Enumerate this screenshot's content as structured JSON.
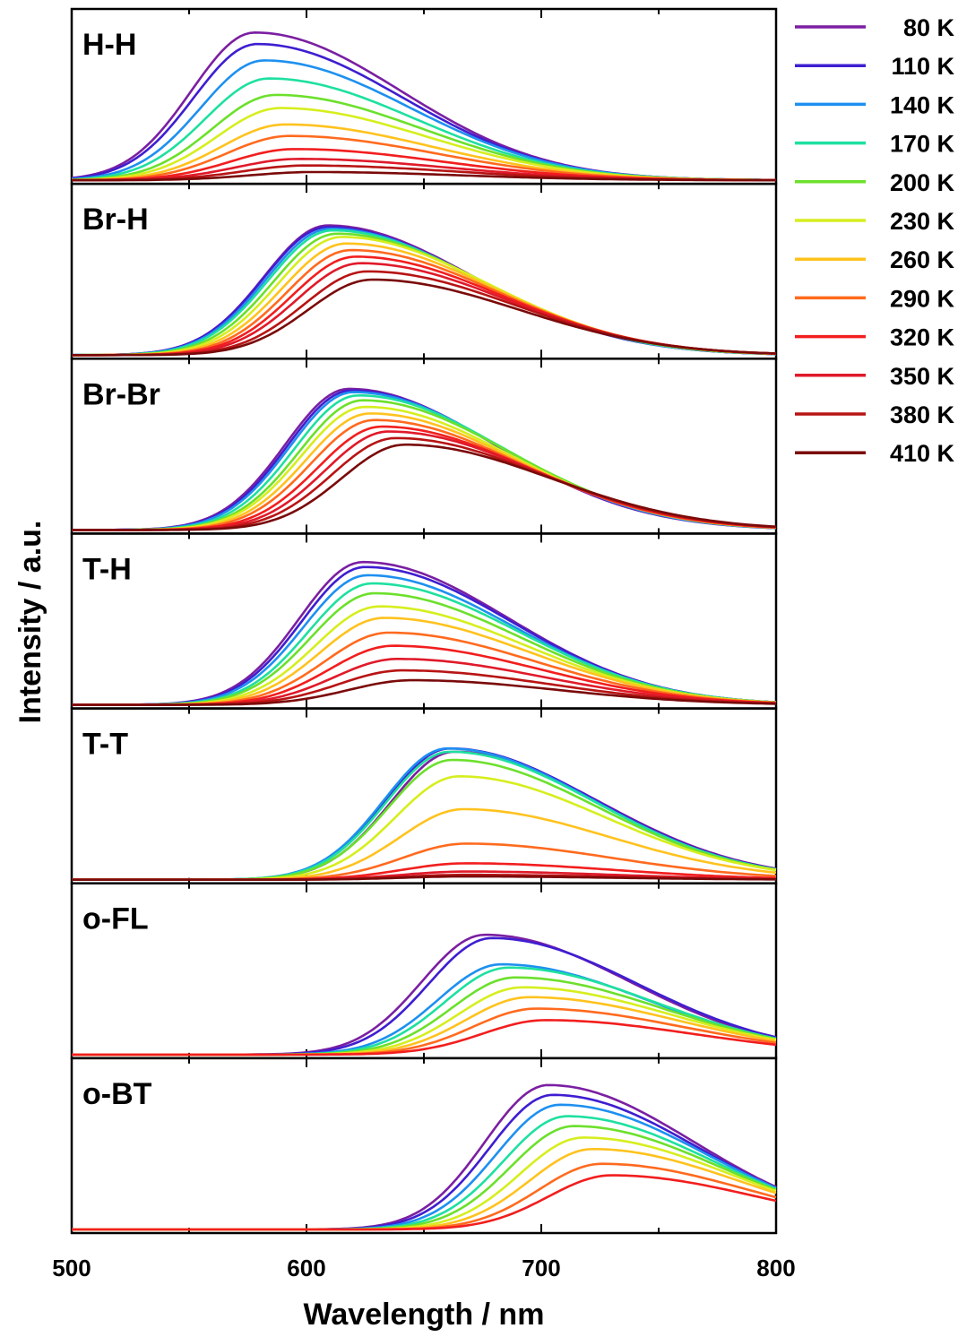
{
  "chart_data": {
    "type": "line",
    "xlabel": "Wavelength / nm",
    "ylabel": "Intensity / a.u.",
    "xlim": [
      500,
      800
    ],
    "x_ticks": [
      500,
      600,
      700,
      800
    ],
    "legend": {
      "placement": "right",
      "entries": [
        {
          "label": "80 K",
          "color": "#7B1FA2"
        },
        {
          "label": "110 K",
          "color": "#3F1ED0"
        },
        {
          "label": "140 K",
          "color": "#1E90F0"
        },
        {
          "label": "170 K",
          "color": "#1EE0A0"
        },
        {
          "label": "200 K",
          "color": "#6CE02C"
        },
        {
          "label": "230 K",
          "color": "#D6EE1E"
        },
        {
          "label": "260 K",
          "color": "#FFC21E"
        },
        {
          "label": "290 K",
          "color": "#FF6A1E"
        },
        {
          "label": "320 K",
          "color": "#F21E1E"
        },
        {
          "label": "350 K",
          "color": "#E01A2A"
        },
        {
          "label": "380 K",
          "color": "#B81414"
        },
        {
          "label": "410 K",
          "color": "#7A0A0A"
        }
      ]
    },
    "panels": [
      {
        "label": "H-H",
        "series_peaks": [
          {
            "peak": 578,
            "amp": 0.9
          },
          {
            "peak": 579,
            "amp": 0.83
          },
          {
            "peak": 582,
            "amp": 0.73
          },
          {
            "peak": 584,
            "amp": 0.62
          },
          {
            "peak": 587,
            "amp": 0.52
          },
          {
            "peak": 589,
            "amp": 0.44
          },
          {
            "peak": 591,
            "amp": 0.34
          },
          {
            "peak": 593,
            "amp": 0.27
          },
          {
            "peak": 595,
            "amp": 0.19
          },
          {
            "peak": 597,
            "amp": 0.13
          },
          {
            "peak": 600,
            "amp": 0.09
          },
          {
            "peak": 603,
            "amp": 0.05
          }
        ]
      },
      {
        "label": "Br-H",
        "series_peaks": [
          {
            "peak": 609,
            "amp": 0.79
          },
          {
            "peak": 609,
            "amp": 0.78
          },
          {
            "peak": 610,
            "amp": 0.77
          },
          {
            "peak": 611,
            "amp": 0.76
          },
          {
            "peak": 613,
            "amp": 0.74
          },
          {
            "peak": 615,
            "amp": 0.72
          },
          {
            "peak": 617,
            "amp": 0.68
          },
          {
            "peak": 619,
            "amp": 0.64
          },
          {
            "peak": 621,
            "amp": 0.6
          },
          {
            "peak": 623,
            "amp": 0.56
          },
          {
            "peak": 626,
            "amp": 0.51
          },
          {
            "peak": 628,
            "amp": 0.46
          }
        ]
      },
      {
        "label": "Br-Br",
        "series_peaks": [
          {
            "peak": 618,
            "amp": 0.86
          },
          {
            "peak": 619,
            "amp": 0.85
          },
          {
            "peak": 620,
            "amp": 0.84
          },
          {
            "peak": 622,
            "amp": 0.82
          },
          {
            "peak": 624,
            "amp": 0.79
          },
          {
            "peak": 625,
            "amp": 0.75
          },
          {
            "peak": 627,
            "amp": 0.71
          },
          {
            "peak": 629,
            "amp": 0.67
          },
          {
            "peak": 632,
            "amp": 0.63
          },
          {
            "peak": 635,
            "amp": 0.6
          },
          {
            "peak": 638,
            "amp": 0.56
          },
          {
            "peak": 642,
            "amp": 0.52
          }
        ]
      },
      {
        "label": "T-H",
        "series_peaks": [
          {
            "peak": 624,
            "amp": 0.87
          },
          {
            "peak": 625,
            "amp": 0.84
          },
          {
            "peak": 626,
            "amp": 0.79
          },
          {
            "peak": 628,
            "amp": 0.74
          },
          {
            "peak": 629,
            "amp": 0.68
          },
          {
            "peak": 631,
            "amp": 0.6
          },
          {
            "peak": 633,
            "amp": 0.53
          },
          {
            "peak": 635,
            "amp": 0.44
          },
          {
            "peak": 637,
            "amp": 0.36
          },
          {
            "peak": 639,
            "amp": 0.28
          },
          {
            "peak": 641,
            "amp": 0.21
          },
          {
            "peak": 645,
            "amp": 0.15
          }
        ]
      },
      {
        "label": "T-T",
        "series_peaks": [
          {
            "peak": 663,
            "amp": 0.78
          },
          {
            "peak": 661,
            "amp": 0.8
          },
          {
            "peak": 660,
            "amp": 0.8
          },
          {
            "peak": 661,
            "amp": 0.78
          },
          {
            "peak": 662,
            "amp": 0.73
          },
          {
            "peak": 665,
            "amp": 0.63
          },
          {
            "peak": 667,
            "amp": 0.43
          },
          {
            "peak": 668,
            "amp": 0.22
          },
          {
            "peak": 668,
            "amp": 0.1
          },
          {
            "peak": 668,
            "amp": 0.05
          },
          {
            "peak": 668,
            "amp": 0.03
          },
          {
            "peak": 668,
            "amp": 0.02
          }
        ]
      },
      {
        "label": "o-FL",
        "series_peaks": [
          {
            "peak": 676,
            "amp": 0.73
          },
          {
            "peak": 679,
            "amp": 0.71
          },
          {
            "peak": 683,
            "amp": 0.55
          },
          {
            "peak": 686,
            "amp": 0.53
          },
          {
            "peak": 689,
            "amp": 0.47
          },
          {
            "peak": 692,
            "amp": 0.41
          },
          {
            "peak": 695,
            "amp": 0.35
          },
          {
            "peak": 698,
            "amp": 0.28
          },
          {
            "peak": 702,
            "amp": 0.21
          }
        ]
      },
      {
        "label": "o-BT",
        "series_peaks": [
          {
            "peak": 703,
            "amp": 0.88
          },
          {
            "peak": 705,
            "amp": 0.82
          },
          {
            "peak": 708,
            "amp": 0.76
          },
          {
            "peak": 711,
            "amp": 0.69
          },
          {
            "peak": 714,
            "amp": 0.63
          },
          {
            "peak": 718,
            "amp": 0.56
          },
          {
            "peak": 722,
            "amp": 0.49
          },
          {
            "peak": 726,
            "amp": 0.4
          },
          {
            "peak": 730,
            "amp": 0.33
          }
        ]
      }
    ]
  }
}
